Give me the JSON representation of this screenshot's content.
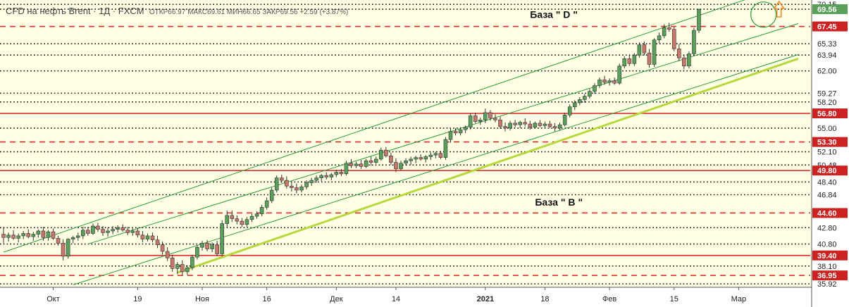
{
  "header": {
    "symbol": "CFD на нефть Brent · 1Д · FXCM",
    "ohlc": "ОТКР66.97 МАКС69.61 МИН66.65 ЗАКР69.56 +2.59 (+3.87%)"
  },
  "colors": {
    "background": "#ffffe5",
    "up_candle": "#5aa05a",
    "down_candle": "#c8776b",
    "channel_line": "#2e9a3b",
    "base_line": "#b6d83a",
    "red_level": "#e03030",
    "dotted_level": "#111111",
    "arrow": "#f08a24",
    "price_label_highlight": "#cc2222"
  },
  "chart_data": {
    "type": "candlestick",
    "instrument": "CFD на нефть Brent",
    "timeframe": "1Д",
    "source": "FXCM",
    "ylim": [
      35.5,
      70.6
    ],
    "x_tick_labels": [
      "Окт",
      "19",
      "Ноя",
      "16",
      "Дек",
      "14",
      "2021",
      "18",
      "Фев",
      "15",
      "Мар"
    ],
    "x_tick_bars": [
      10,
      27,
      40,
      53,
      67,
      79,
      97,
      109,
      122,
      135,
      148
    ],
    "y_axis_labels": [
      {
        "value": 70.15,
        "text": "70.15",
        "style": "normal"
      },
      {
        "value": 69.56,
        "text": "69.56",
        "style": "current"
      },
      {
        "value": 67.45,
        "text": "67.45",
        "style": "red"
      },
      {
        "value": 65.33,
        "text": "65.33",
        "style": "normal"
      },
      {
        "value": 63.94,
        "text": "63.94",
        "style": "normal"
      },
      {
        "value": 62.0,
        "text": "62.00",
        "style": "normal"
      },
      {
        "value": 59.27,
        "text": "59.27",
        "style": "normal"
      },
      {
        "value": 58.2,
        "text": "58.20",
        "style": "normal"
      },
      {
        "value": 56.8,
        "text": "56.80",
        "style": "red"
      },
      {
        "value": 55.0,
        "text": "55.00",
        "style": "normal"
      },
      {
        "value": 53.3,
        "text": "53.30",
        "style": "red"
      },
      {
        "value": 52.1,
        "text": "52.10",
        "style": "normal"
      },
      {
        "value": 50.48,
        "text": "50.48",
        "style": "normal"
      },
      {
        "value": 49.8,
        "text": "49.80",
        "style": "red"
      },
      {
        "value": 48.4,
        "text": "48.40",
        "style": "normal"
      },
      {
        "value": 46.84,
        "text": "46.84",
        "style": "normal"
      },
      {
        "value": 44.6,
        "text": "44.60",
        "style": "red"
      },
      {
        "value": 42.8,
        "text": "42.80",
        "style": "normal"
      },
      {
        "value": 40.8,
        "text": "40.80",
        "style": "normal"
      },
      {
        "value": 39.4,
        "text": "39.40",
        "style": "red"
      },
      {
        "value": 38.1,
        "text": "38.10",
        "style": "normal"
      },
      {
        "value": 36.95,
        "text": "36.95",
        "style": "red"
      },
      {
        "value": 35.92,
        "text": "35.92",
        "style": "normal"
      }
    ],
    "levels": {
      "solid_red": [
        67.45,
        56.8,
        49.8,
        39.4
      ],
      "dashed_red": [
        67.45,
        53.3,
        44.6,
        36.95
      ],
      "dotted": [
        70.15,
        69.56,
        65.33,
        63.94,
        62.0,
        59.27,
        58.2,
        55.0,
        52.1,
        50.48,
        48.4,
        46.84,
        42.8,
        40.8,
        38.1,
        35.92
      ]
    },
    "channel_lines": [
      {
        "name": "upper",
        "from": [
          0,
          39.8
        ],
        "to": [
          155,
          71.9
        ]
      },
      {
        "name": "middle",
        "from": [
          17,
          40.8
        ],
        "to": [
          160,
          67.8
        ]
      },
      {
        "name": "lower",
        "from": [
          14,
          35.8
        ],
        "to": [
          160,
          64.0
        ]
      }
    ],
    "base_line": {
      "from": [
        35,
        37.3
      ],
      "to": [
        160,
        63.5
      ]
    },
    "annotations": [
      {
        "text": "База \" D \"",
        "bar": 106,
        "price": 68.5
      },
      {
        "text": "База \" В \"",
        "bar": 107,
        "price": 45.5
      }
    ],
    "highlight_circle": {
      "bar": 153,
      "price": 68.9
    },
    "candles": [
      {
        "o": 42.0,
        "h": 42.9,
        "l": 40.9,
        "c": 41.6
      },
      {
        "o": 41.6,
        "h": 42.2,
        "l": 41.1,
        "c": 41.9
      },
      {
        "o": 41.9,
        "h": 42.5,
        "l": 41.3,
        "c": 41.5
      },
      {
        "o": 41.5,
        "h": 42.1,
        "l": 41.0,
        "c": 41.8
      },
      {
        "o": 41.8,
        "h": 42.4,
        "l": 41.4,
        "c": 42.1
      },
      {
        "o": 42.1,
        "h": 42.6,
        "l": 41.5,
        "c": 41.7
      },
      {
        "o": 41.7,
        "h": 42.3,
        "l": 41.2,
        "c": 42.0
      },
      {
        "o": 42.0,
        "h": 42.6,
        "l": 41.6,
        "c": 42.4
      },
      {
        "o": 42.4,
        "h": 42.9,
        "l": 41.2,
        "c": 41.6
      },
      {
        "o": 41.6,
        "h": 42.5,
        "l": 41.2,
        "c": 42.3
      },
      {
        "o": 42.3,
        "h": 42.7,
        "l": 41.3,
        "c": 41.5
      },
      {
        "o": 41.5,
        "h": 41.8,
        "l": 40.6,
        "c": 40.9
      },
      {
        "o": 40.9,
        "h": 41.4,
        "l": 38.8,
        "c": 39.3
      },
      {
        "o": 39.3,
        "h": 41.5,
        "l": 39.0,
        "c": 41.4
      },
      {
        "o": 41.4,
        "h": 41.8,
        "l": 40.9,
        "c": 41.6
      },
      {
        "o": 41.6,
        "h": 42.2,
        "l": 41.2,
        "c": 41.8
      },
      {
        "o": 41.8,
        "h": 42.9,
        "l": 41.4,
        "c": 42.5
      },
      {
        "o": 42.5,
        "h": 42.9,
        "l": 41.8,
        "c": 42.1
      },
      {
        "o": 42.1,
        "h": 43.3,
        "l": 41.9,
        "c": 43.0
      },
      {
        "o": 43.0,
        "h": 43.4,
        "l": 42.3,
        "c": 42.6
      },
      {
        "o": 42.6,
        "h": 43.0,
        "l": 41.8,
        "c": 42.2
      },
      {
        "o": 42.2,
        "h": 42.8,
        "l": 41.7,
        "c": 42.4
      },
      {
        "o": 42.4,
        "h": 43.0,
        "l": 42.0,
        "c": 42.6
      },
      {
        "o": 42.6,
        "h": 43.1,
        "l": 42.2,
        "c": 42.8
      },
      {
        "o": 42.8,
        "h": 43.2,
        "l": 42.3,
        "c": 42.5
      },
      {
        "o": 42.5,
        "h": 42.9,
        "l": 41.9,
        "c": 42.2
      },
      {
        "o": 42.2,
        "h": 42.7,
        "l": 41.8,
        "c": 42.4
      },
      {
        "o": 42.4,
        "h": 42.8,
        "l": 41.6,
        "c": 41.9
      },
      {
        "o": 41.9,
        "h": 42.4,
        "l": 41.0,
        "c": 41.4
      },
      {
        "o": 41.4,
        "h": 42.1,
        "l": 41.1,
        "c": 41.8
      },
      {
        "o": 41.8,
        "h": 42.2,
        "l": 41.0,
        "c": 41.3
      },
      {
        "o": 41.3,
        "h": 41.8,
        "l": 40.3,
        "c": 40.7
      },
      {
        "o": 40.7,
        "h": 41.1,
        "l": 39.5,
        "c": 39.9
      },
      {
        "o": 39.9,
        "h": 40.4,
        "l": 38.7,
        "c": 39.1
      },
      {
        "o": 39.1,
        "h": 39.5,
        "l": 37.4,
        "c": 37.8
      },
      {
        "o": 37.8,
        "h": 38.6,
        "l": 37.1,
        "c": 38.3
      },
      {
        "o": 38.3,
        "h": 38.8,
        "l": 37.0,
        "c": 37.4
      },
      {
        "o": 37.4,
        "h": 38.2,
        "l": 37.0,
        "c": 37.9
      },
      {
        "o": 37.9,
        "h": 39.5,
        "l": 37.6,
        "c": 39.2
      },
      {
        "o": 39.2,
        "h": 40.6,
        "l": 38.9,
        "c": 40.4
      },
      {
        "o": 40.4,
        "h": 41.2,
        "l": 40.0,
        "c": 40.9
      },
      {
        "o": 40.9,
        "h": 41.3,
        "l": 39.9,
        "c": 40.2
      },
      {
        "o": 40.2,
        "h": 41.0,
        "l": 39.8,
        "c": 40.7
      },
      {
        "o": 40.7,
        "h": 41.2,
        "l": 39.3,
        "c": 39.6
      },
      {
        "o": 39.6,
        "h": 43.7,
        "l": 39.3,
        "c": 43.3
      },
      {
        "o": 43.3,
        "h": 44.9,
        "l": 42.9,
        "c": 44.3
      },
      {
        "o": 44.3,
        "h": 44.9,
        "l": 43.5,
        "c": 43.9
      },
      {
        "o": 43.9,
        "h": 44.3,
        "l": 43.2,
        "c": 43.6
      },
      {
        "o": 43.6,
        "h": 44.0,
        "l": 42.9,
        "c": 43.2
      },
      {
        "o": 43.2,
        "h": 44.1,
        "l": 42.9,
        "c": 43.8
      },
      {
        "o": 43.8,
        "h": 44.5,
        "l": 43.5,
        "c": 44.2
      },
      {
        "o": 44.2,
        "h": 44.8,
        "l": 43.9,
        "c": 44.5
      },
      {
        "o": 44.5,
        "h": 45.6,
        "l": 44.2,
        "c": 45.3
      },
      {
        "o": 45.3,
        "h": 46.5,
        "l": 45.0,
        "c": 46.1
      },
      {
        "o": 46.1,
        "h": 47.7,
        "l": 45.8,
        "c": 47.4
      },
      {
        "o": 47.4,
        "h": 49.2,
        "l": 47.1,
        "c": 48.9
      },
      {
        "o": 48.9,
        "h": 49.3,
        "l": 48.3,
        "c": 48.6
      },
      {
        "o": 48.6,
        "h": 49.1,
        "l": 47.6,
        "c": 47.9
      },
      {
        "o": 47.9,
        "h": 48.4,
        "l": 47.2,
        "c": 47.7
      },
      {
        "o": 47.7,
        "h": 48.2,
        "l": 47.0,
        "c": 47.4
      },
      {
        "o": 47.4,
        "h": 48.1,
        "l": 47.1,
        "c": 47.8
      },
      {
        "o": 47.8,
        "h": 48.6,
        "l": 47.5,
        "c": 48.3
      },
      {
        "o": 48.3,
        "h": 48.9,
        "l": 47.9,
        "c": 48.6
      },
      {
        "o": 48.6,
        "h": 49.2,
        "l": 48.3,
        "c": 48.9
      },
      {
        "o": 48.9,
        "h": 49.4,
        "l": 48.5,
        "c": 49.2
      },
      {
        "o": 49.2,
        "h": 49.6,
        "l": 48.7,
        "c": 49.0
      },
      {
        "o": 49.0,
        "h": 49.5,
        "l": 48.6,
        "c": 49.3
      },
      {
        "o": 49.3,
        "h": 49.9,
        "l": 49.0,
        "c": 49.6
      },
      {
        "o": 49.6,
        "h": 50.0,
        "l": 49.1,
        "c": 49.4
      },
      {
        "o": 49.4,
        "h": 51.0,
        "l": 49.2,
        "c": 50.7
      },
      {
        "o": 50.7,
        "h": 51.2,
        "l": 50.1,
        "c": 50.4
      },
      {
        "o": 50.4,
        "h": 50.9,
        "l": 50.1,
        "c": 50.6
      },
      {
        "o": 50.6,
        "h": 51.1,
        "l": 50.0,
        "c": 50.3
      },
      {
        "o": 50.3,
        "h": 51.2,
        "l": 50.1,
        "c": 51.0
      },
      {
        "o": 51.0,
        "h": 51.5,
        "l": 50.4,
        "c": 50.8
      },
      {
        "o": 50.8,
        "h": 51.5,
        "l": 50.6,
        "c": 51.2
      },
      {
        "o": 51.2,
        "h": 52.6,
        "l": 51.0,
        "c": 52.3
      },
      {
        "o": 52.3,
        "h": 52.7,
        "l": 51.4,
        "c": 51.6
      },
      {
        "o": 51.6,
        "h": 52.0,
        "l": 50.5,
        "c": 50.8
      },
      {
        "o": 50.8,
        "h": 51.3,
        "l": 49.6,
        "c": 50.0
      },
      {
        "o": 50.0,
        "h": 51.0,
        "l": 49.8,
        "c": 50.7
      },
      {
        "o": 50.7,
        "h": 51.3,
        "l": 50.4,
        "c": 51.0
      },
      {
        "o": 51.0,
        "h": 51.5,
        "l": 50.5,
        "c": 51.2
      },
      {
        "o": 51.2,
        "h": 51.6,
        "l": 50.7,
        "c": 51.4
      },
      {
        "o": 51.4,
        "h": 51.8,
        "l": 51.0,
        "c": 51.2
      },
      {
        "o": 51.2,
        "h": 51.7,
        "l": 50.8,
        "c": 51.5
      },
      {
        "o": 51.5,
        "h": 52.0,
        "l": 51.1,
        "c": 51.7
      },
      {
        "o": 51.7,
        "h": 52.1,
        "l": 51.3,
        "c": 51.9
      },
      {
        "o": 51.9,
        "h": 52.2,
        "l": 51.2,
        "c": 51.4
      },
      {
        "o": 51.4,
        "h": 53.9,
        "l": 51.1,
        "c": 53.6
      },
      {
        "o": 53.6,
        "h": 54.9,
        "l": 53.2,
        "c": 54.6
      },
      {
        "o": 54.6,
        "h": 55.0,
        "l": 54.1,
        "c": 54.4
      },
      {
        "o": 54.4,
        "h": 55.1,
        "l": 54.1,
        "c": 54.8
      },
      {
        "o": 54.8,
        "h": 55.3,
        "l": 54.4,
        "c": 55.1
      },
      {
        "o": 55.1,
        "h": 56.8,
        "l": 54.8,
        "c": 56.5
      },
      {
        "o": 56.5,
        "h": 56.9,
        "l": 55.6,
        "c": 55.8
      },
      {
        "o": 55.8,
        "h": 56.3,
        "l": 55.4,
        "c": 56.0
      },
      {
        "o": 56.0,
        "h": 57.4,
        "l": 55.6,
        "c": 56.9
      },
      {
        "o": 56.9,
        "h": 57.2,
        "l": 55.9,
        "c": 56.2
      },
      {
        "o": 56.2,
        "h": 56.7,
        "l": 55.7,
        "c": 56.0
      },
      {
        "o": 56.0,
        "h": 56.4,
        "l": 54.9,
        "c": 55.2
      },
      {
        "o": 55.2,
        "h": 55.7,
        "l": 54.6,
        "c": 55.0
      },
      {
        "o": 55.0,
        "h": 55.9,
        "l": 54.7,
        "c": 55.6
      },
      {
        "o": 55.6,
        "h": 56.0,
        "l": 55.1,
        "c": 55.4
      },
      {
        "o": 55.4,
        "h": 55.9,
        "l": 55.0,
        "c": 55.7
      },
      {
        "o": 55.7,
        "h": 56.2,
        "l": 55.2,
        "c": 55.5
      },
      {
        "o": 55.5,
        "h": 55.9,
        "l": 54.8,
        "c": 55.1
      },
      {
        "o": 55.1,
        "h": 55.8,
        "l": 54.9,
        "c": 55.6
      },
      {
        "o": 55.6,
        "h": 56.0,
        "l": 55.1,
        "c": 55.3
      },
      {
        "o": 55.3,
        "h": 55.8,
        "l": 55.0,
        "c": 55.5
      },
      {
        "o": 55.5,
        "h": 55.9,
        "l": 55.0,
        "c": 55.2
      },
      {
        "o": 55.2,
        "h": 55.6,
        "l": 54.6,
        "c": 55.0
      },
      {
        "o": 55.0,
        "h": 55.7,
        "l": 54.7,
        "c": 55.4
      },
      {
        "o": 55.4,
        "h": 56.9,
        "l": 55.2,
        "c": 56.6
      },
      {
        "o": 56.6,
        "h": 57.9,
        "l": 56.3,
        "c": 57.6
      },
      {
        "o": 57.6,
        "h": 58.4,
        "l": 57.2,
        "c": 58.1
      },
      {
        "o": 58.1,
        "h": 58.8,
        "l": 57.8,
        "c": 58.5
      },
      {
        "o": 58.5,
        "h": 59.2,
        "l": 58.1,
        "c": 58.9
      },
      {
        "o": 58.9,
        "h": 59.8,
        "l": 58.6,
        "c": 59.5
      },
      {
        "o": 59.5,
        "h": 60.5,
        "l": 59.2,
        "c": 60.2
      },
      {
        "o": 60.2,
        "h": 61.2,
        "l": 59.9,
        "c": 60.9
      },
      {
        "o": 60.9,
        "h": 61.4,
        "l": 60.3,
        "c": 60.6
      },
      {
        "o": 60.6,
        "h": 61.1,
        "l": 60.2,
        "c": 60.8
      },
      {
        "o": 60.8,
        "h": 61.2,
        "l": 60.3,
        "c": 60.5
      },
      {
        "o": 60.5,
        "h": 62.9,
        "l": 60.3,
        "c": 62.6
      },
      {
        "o": 62.6,
        "h": 63.8,
        "l": 62.3,
        "c": 63.5
      },
      {
        "o": 63.5,
        "h": 63.9,
        "l": 62.6,
        "c": 62.9
      },
      {
        "o": 62.9,
        "h": 64.2,
        "l": 62.6,
        "c": 63.9
      },
      {
        "o": 63.9,
        "h": 65.5,
        "l": 63.6,
        "c": 65.2
      },
      {
        "o": 65.2,
        "h": 65.6,
        "l": 63.9,
        "c": 64.2
      },
      {
        "o": 64.2,
        "h": 64.7,
        "l": 62.4,
        "c": 62.8
      },
      {
        "o": 62.8,
        "h": 66.0,
        "l": 62.5,
        "c": 65.8
      },
      {
        "o": 65.8,
        "h": 66.7,
        "l": 65.4,
        "c": 66.3
      },
      {
        "o": 66.3,
        "h": 67.7,
        "l": 66.0,
        "c": 67.3
      },
      {
        "o": 67.3,
        "h": 67.9,
        "l": 66.8,
        "c": 67.1
      },
      {
        "o": 67.1,
        "h": 67.4,
        "l": 64.4,
        "c": 64.7
      },
      {
        "o": 64.7,
        "h": 65.3,
        "l": 63.2,
        "c": 63.6
      },
      {
        "o": 63.6,
        "h": 64.0,
        "l": 62.2,
        "c": 62.6
      },
      {
        "o": 62.6,
        "h": 64.4,
        "l": 62.3,
        "c": 64.1
      },
      {
        "o": 64.1,
        "h": 67.3,
        "l": 63.8,
        "c": 66.97
      },
      {
        "o": 66.97,
        "h": 69.61,
        "l": 66.65,
        "c": 69.56
      }
    ]
  }
}
